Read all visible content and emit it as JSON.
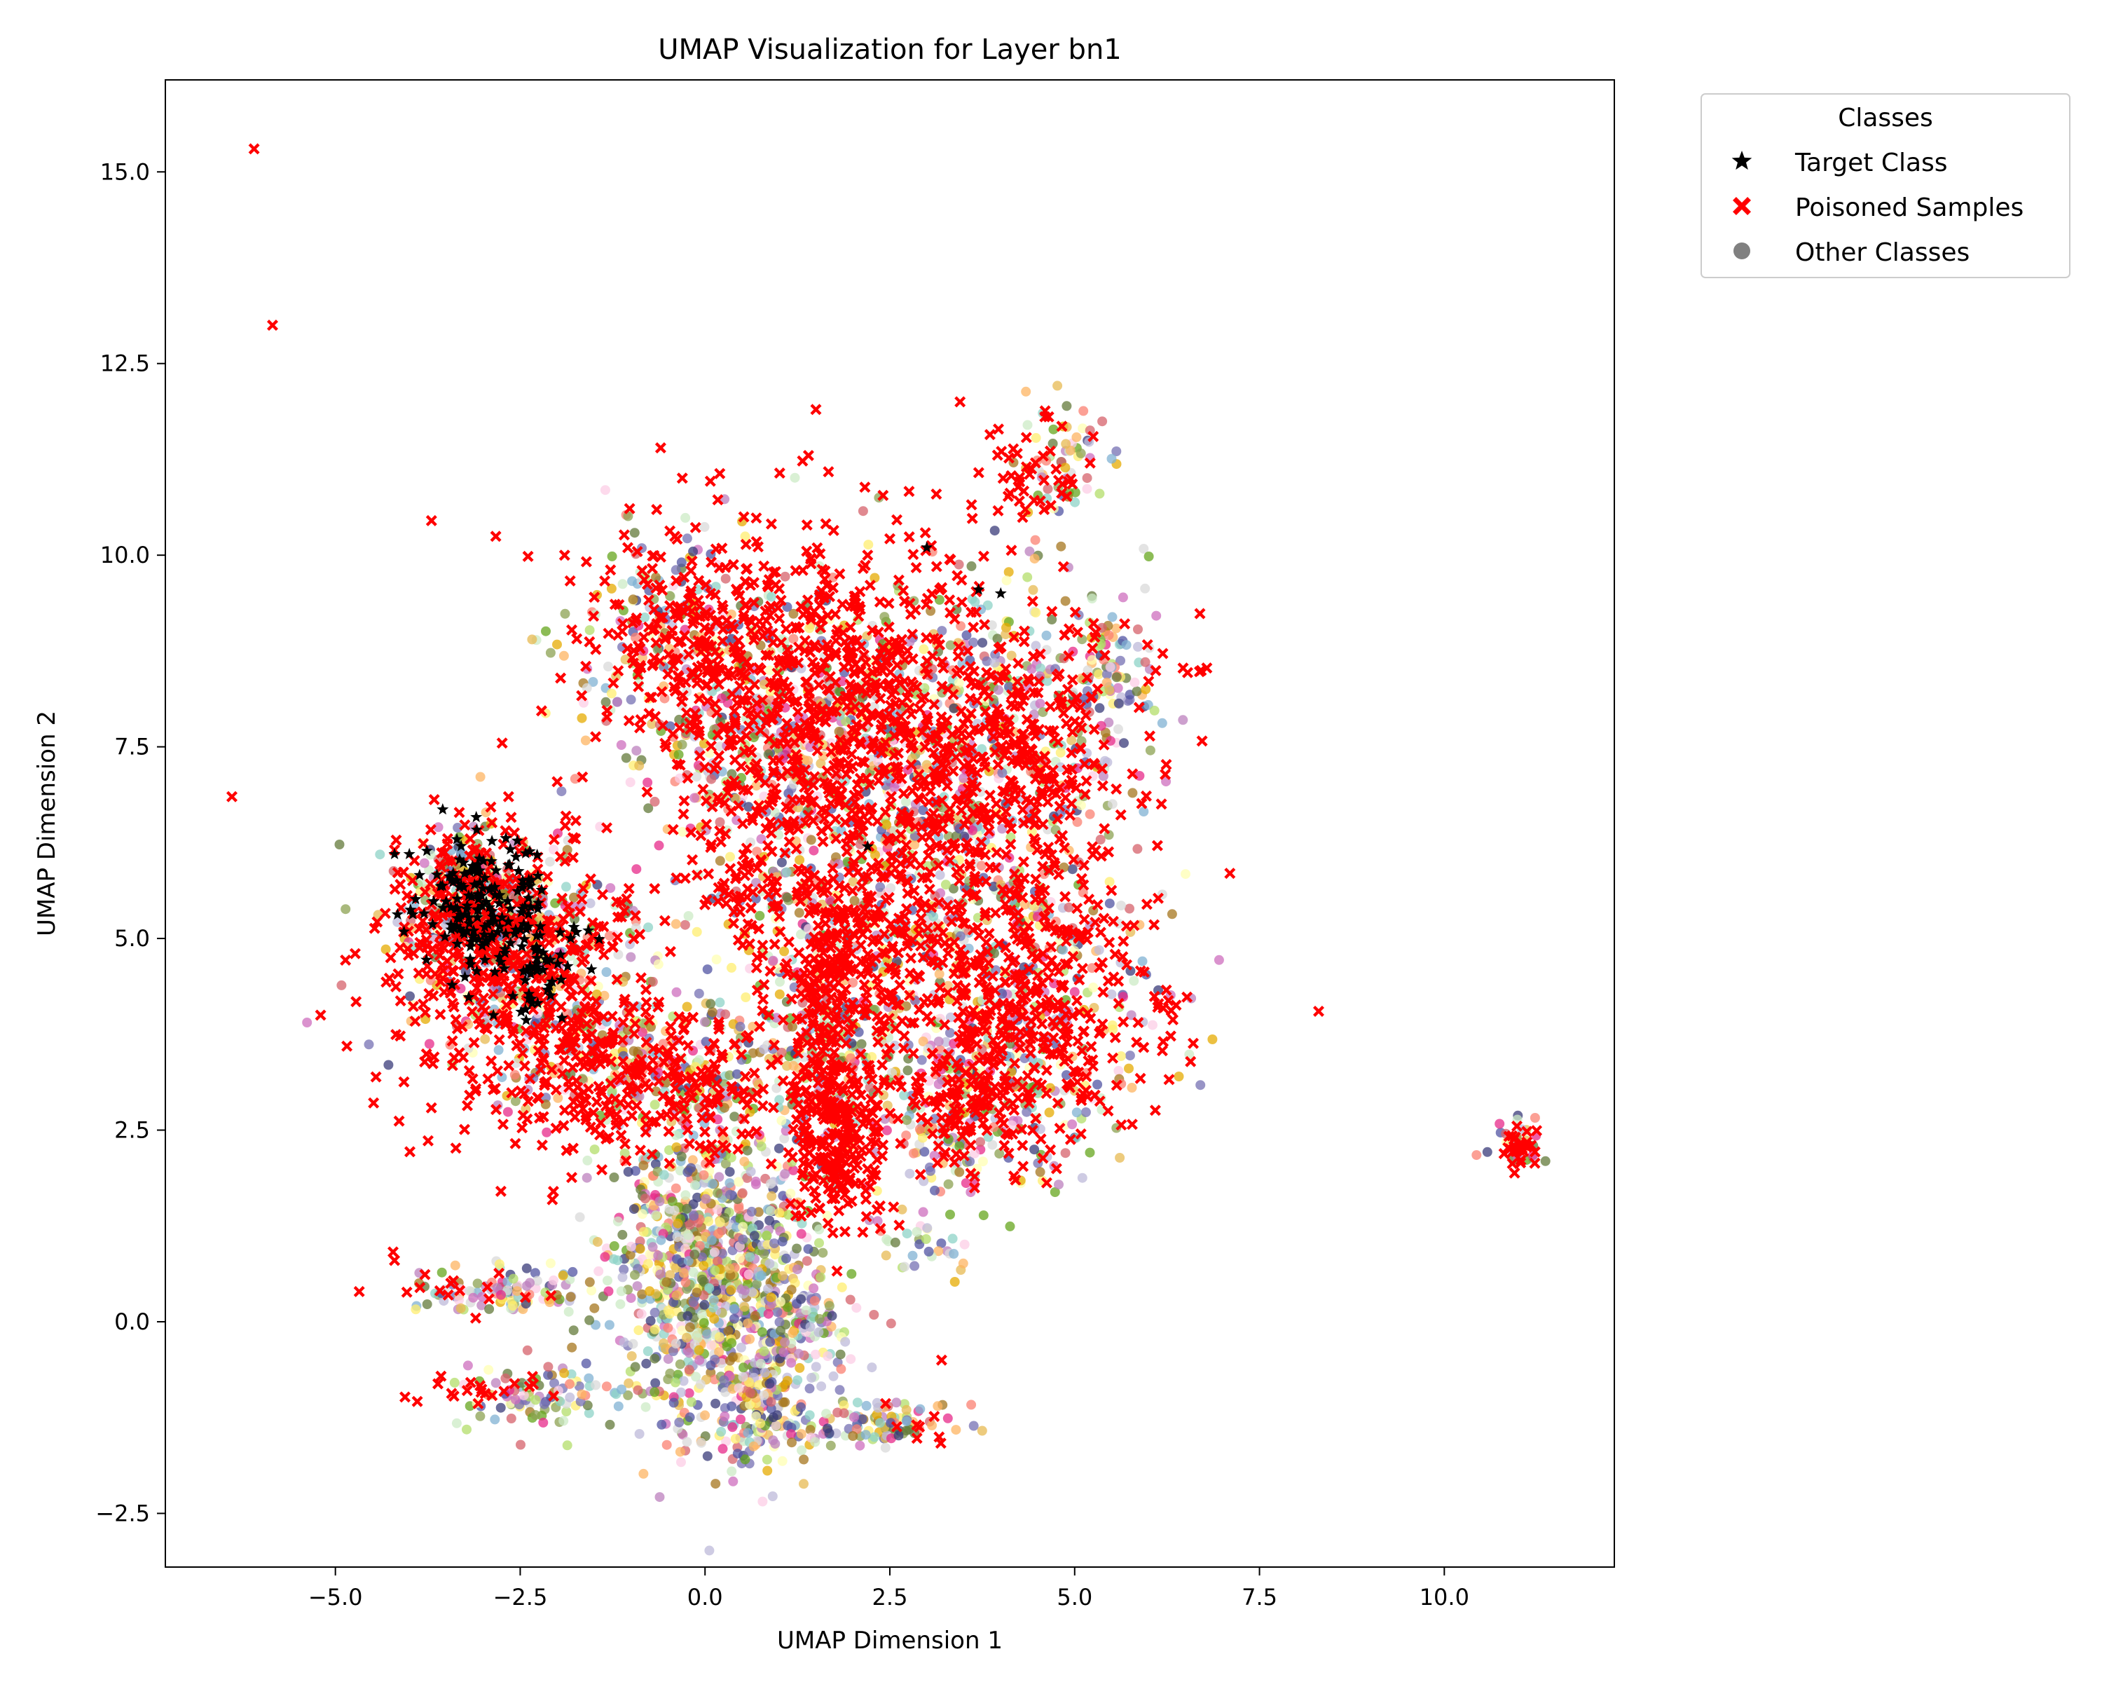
{
  "chart_data": {
    "type": "scatter",
    "title": "UMAP Visualization for Layer bn1",
    "xlabel": "UMAP Dimension 1",
    "ylabel": "UMAP Dimension 2",
    "xlim": [
      -7.3,
      12.3
    ],
    "ylim": [
      -3.2,
      16.2
    ],
    "xticks": [
      -5.0,
      -2.5,
      0.0,
      2.5,
      5.0,
      7.5,
      10.0
    ],
    "yticks": [
      -2.5,
      0.0,
      2.5,
      5.0,
      7.5,
      10.0,
      12.5,
      15.0
    ],
    "xtick_labels": [
      "−5.0",
      "−2.5",
      "0.0",
      "2.5",
      "5.0",
      "7.5",
      "10.0"
    ],
    "ytick_labels": [
      "−2.5",
      "0.0",
      "2.5",
      "5.0",
      "7.5",
      "10.0",
      "12.5",
      "15.0"
    ],
    "grid": false,
    "legend": {
      "title": "Classes",
      "placement": "outside-upper-right",
      "entries": [
        {
          "label": "Target Class",
          "marker": "star",
          "color": "#000000"
        },
        {
          "label": "Poisoned Samples",
          "marker": "x",
          "color": "#ff0000"
        },
        {
          "label": "Other Classes",
          "marker": "circle",
          "color": "#808080"
        }
      ]
    },
    "series": [
      {
        "name": "Other Classes",
        "marker": "circle",
        "palette": [
          "#8dd3c7",
          "#ffffb3",
          "#bebada",
          "#fb8072",
          "#80b1d3",
          "#fdb462",
          "#b3de69",
          "#fccde5",
          "#d9d9d9",
          "#bc80bd",
          "#ccebc5",
          "#ffed6f",
          "#e7298a",
          "#7570b3",
          "#66a61e",
          "#e6ab02",
          "#a6761d",
          "#393b79",
          "#5254a3",
          "#d6616b",
          "#e7ba52",
          "#ce6dbd",
          "#637939",
          "#8ca252"
        ],
        "clusters": [
          {
            "cx": 0.2,
            "cy": 0.3,
            "sx": 0.7,
            "sy": 1.0,
            "n": 700
          },
          {
            "cx": -0.2,
            "cy": 1.2,
            "sx": 0.5,
            "sy": 0.6,
            "n": 250
          },
          {
            "cx": 0.8,
            "cy": -1.2,
            "sx": 0.3,
            "sy": 0.4,
            "n": 120
          },
          {
            "cx": 1.0,
            "cy": 0.6,
            "sx": 0.3,
            "sy": 0.8,
            "n": 120
          },
          {
            "cx": -2.7,
            "cy": 0.4,
            "sx": 0.6,
            "sy": 0.15,
            "n": 100
          },
          {
            "cx": -2.2,
            "cy": -1.0,
            "sx": 0.6,
            "sy": 0.2,
            "n": 100
          },
          {
            "cx": 2.4,
            "cy": -1.3,
            "sx": 0.5,
            "sy": 0.15,
            "n": 90
          },
          {
            "cx": 1.6,
            "cy": -0.1,
            "sx": 0.3,
            "sy": 0.2,
            "n": 50
          },
          {
            "cx": -2.5,
            "cy": 4.8,
            "sx": 0.9,
            "sy": 0.9,
            "n": 320
          },
          {
            "cx": -3.3,
            "cy": 5.6,
            "sx": 0.4,
            "sy": 0.4,
            "n": 120
          },
          {
            "cx": -1.3,
            "cy": 3.4,
            "sx": 0.6,
            "sy": 0.4,
            "n": 120
          },
          {
            "cx": 0.1,
            "cy": 3.2,
            "sx": 0.5,
            "sy": 0.5,
            "n": 120
          },
          {
            "cx": -0.3,
            "cy": 8.8,
            "sx": 0.8,
            "sy": 0.8,
            "n": 200
          },
          {
            "cx": 0.7,
            "cy": 7.5,
            "sx": 0.7,
            "sy": 0.9,
            "n": 160
          },
          {
            "cx": 2.2,
            "cy": 8.0,
            "sx": 1.0,
            "sy": 1.0,
            "n": 300
          },
          {
            "cx": 4.2,
            "cy": 7.8,
            "sx": 0.9,
            "sy": 1.0,
            "n": 260
          },
          {
            "cx": 2.3,
            "cy": 5.6,
            "sx": 1.0,
            "sy": 1.0,
            "n": 300
          },
          {
            "cx": 4.3,
            "cy": 4.6,
            "sx": 1.0,
            "sy": 1.0,
            "n": 300
          },
          {
            "cx": 3.6,
            "cy": 2.8,
            "sx": 0.8,
            "sy": 0.6,
            "n": 200
          },
          {
            "cx": 1.6,
            "cy": 3.6,
            "sx": 0.5,
            "sy": 0.8,
            "n": 160
          },
          {
            "cx": 4.8,
            "cy": 11.2,
            "sx": 0.3,
            "sy": 0.4,
            "n": 60
          },
          {
            "cx": 5.5,
            "cy": 8.5,
            "sx": 0.3,
            "sy": 0.4,
            "n": 60
          },
          {
            "cx": 3.0,
            "cy": 1.0,
            "sx": 0.3,
            "sy": 0.2,
            "n": 30
          },
          {
            "cx": 11.0,
            "cy": 2.3,
            "sx": 0.2,
            "sy": 0.15,
            "n": 25
          }
        ]
      },
      {
        "name": "Poisoned Samples",
        "marker": "x",
        "color": "#ff0000",
        "clusters": [
          {
            "cx": -2.5,
            "cy": 4.5,
            "sx": 0.9,
            "sy": 1.0,
            "n": 420
          },
          {
            "cx": -3.3,
            "cy": 5.4,
            "sx": 0.4,
            "sy": 0.5,
            "n": 150
          },
          {
            "cx": -1.2,
            "cy": 3.2,
            "sx": 0.6,
            "sy": 0.5,
            "n": 140
          },
          {
            "cx": -0.1,
            "cy": 3.0,
            "sx": 0.6,
            "sy": 0.4,
            "n": 100
          },
          {
            "cx": 0.1,
            "cy": 8.9,
            "sx": 0.9,
            "sy": 0.8,
            "n": 320
          },
          {
            "cx": 0.6,
            "cy": 7.0,
            "sx": 0.5,
            "sy": 0.8,
            "n": 120
          },
          {
            "cx": 2.1,
            "cy": 8.3,
            "sx": 0.9,
            "sy": 1.0,
            "n": 380
          },
          {
            "cx": 4.1,
            "cy": 7.4,
            "sx": 0.9,
            "sy": 0.9,
            "n": 360
          },
          {
            "cx": 2.2,
            "cy": 5.3,
            "sx": 0.9,
            "sy": 1.1,
            "n": 380
          },
          {
            "cx": 4.3,
            "cy": 4.4,
            "sx": 0.9,
            "sy": 0.9,
            "n": 360
          },
          {
            "cx": 3.7,
            "cy": 3.0,
            "sx": 0.6,
            "sy": 0.5,
            "n": 160
          },
          {
            "cx": 1.8,
            "cy": 2.3,
            "sx": 0.3,
            "sy": 0.5,
            "n": 240
          },
          {
            "cx": 1.7,
            "cy": 4.2,
            "sx": 0.3,
            "sy": 0.8,
            "n": 160
          },
          {
            "cx": 4.4,
            "cy": 11.0,
            "sx": 0.4,
            "sy": 0.5,
            "n": 50
          },
          {
            "cx": 6.2,
            "cy": 4.1,
            "sx": 0.1,
            "sy": 0.05,
            "n": 6
          },
          {
            "cx": 6.7,
            "cy": 8.5,
            "sx": 0.1,
            "sy": 0.05,
            "n": 5
          },
          {
            "cx": -3.0,
            "cy": -0.9,
            "sx": 0.5,
            "sy": 0.1,
            "n": 20
          },
          {
            "cx": -3.2,
            "cy": 0.4,
            "sx": 0.6,
            "sy": 0.15,
            "n": 16
          },
          {
            "cx": 11.0,
            "cy": 2.3,
            "sx": 0.15,
            "sy": 0.15,
            "n": 30
          },
          {
            "cx": 2.9,
            "cy": -1.3,
            "sx": 0.2,
            "sy": 0.2,
            "n": 8
          },
          {
            "cx": 0.3,
            "cy": 5.7,
            "sx": 0.4,
            "sy": 0.3,
            "n": 30
          }
        ],
        "points": [
          [
            -6.1,
            15.3
          ],
          [
            -5.85,
            13.0
          ],
          [
            -6.4,
            6.85
          ],
          [
            -5.2,
            4.0
          ],
          [
            8.3,
            4.05
          ],
          [
            7.1,
            5.85
          ],
          [
            3.45,
            12.0
          ],
          [
            1.5,
            11.9
          ],
          [
            -3.7,
            10.45
          ],
          [
            -1.9,
            10.0
          ],
          [
            -0.6,
            11.4
          ],
          [
            1.4,
            11.3
          ],
          [
            2.2,
            10.0
          ],
          [
            3.2,
            -0.5
          ],
          [
            -2.05,
            1.7
          ],
          [
            4.2,
            1.85
          ],
          [
            -4.2,
            0.8
          ]
        ]
      },
      {
        "name": "Target Class",
        "marker": "star",
        "color": "#000000",
        "clusters": [
          {
            "cx": -3.0,
            "cy": 5.4,
            "sx": 0.5,
            "sy": 0.45,
            "n": 160
          },
          {
            "cx": -2.3,
            "cy": 4.7,
            "sx": 0.3,
            "sy": 0.4,
            "n": 50
          }
        ],
        "points": [
          [
            -4.2,
            6.1
          ],
          [
            -4.0,
            6.1
          ],
          [
            3.0,
            10.1
          ],
          [
            3.7,
            9.55
          ],
          [
            4.0,
            9.5
          ],
          [
            2.2,
            6.2
          ]
        ]
      }
    ]
  }
}
